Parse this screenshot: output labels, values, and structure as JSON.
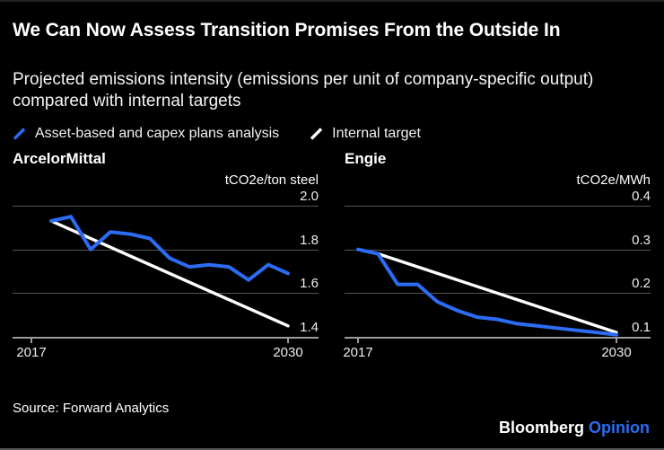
{
  "header": {
    "title": "We Can Now Assess Transition Promises From the Outside In",
    "subtitle": "Projected emissions intensity (emissions per unit of company-specific output) compared with internal targets"
  },
  "legend": {
    "items": [
      {
        "label": "Asset-based and capex plans analysis",
        "color": "#2b6cf2"
      },
      {
        "label": "Internal target",
        "color": "#ffffff"
      }
    ]
  },
  "chart_data": [
    {
      "type": "line",
      "title": "ArcelorMittal",
      "unit": "tCO2e/ton steel",
      "xlim": [
        2017,
        2030
      ],
      "x_ticks": [
        2017,
        2030
      ],
      "ylim": [
        1.4,
        2.0
      ],
      "y_ticks": [
        2.0,
        1.8,
        1.6,
        1.4
      ],
      "grid": "horizontal",
      "legend_position": "top-shared",
      "series": [
        {
          "name": "Asset-based and capex plans analysis",
          "color": "#2b6cf2",
          "x": [
            2018,
            2019,
            2020,
            2021,
            2022,
            2023,
            2024,
            2025,
            2026,
            2027,
            2028,
            2029,
            2030
          ],
          "y": [
            1.93,
            1.95,
            1.8,
            1.88,
            1.87,
            1.85,
            1.76,
            1.72,
            1.73,
            1.72,
            1.66,
            1.73,
            1.69
          ]
        },
        {
          "name": "Internal target",
          "color": "#ffffff",
          "x": [
            2018,
            2030
          ],
          "y": [
            1.93,
            1.45
          ]
        }
      ]
    },
    {
      "type": "line",
      "title": "Engie",
      "unit": "tCO2e/MWh",
      "xlim": [
        2017,
        2030
      ],
      "x_ticks": [
        2017,
        2030
      ],
      "ylim": [
        0.1,
        0.4
      ],
      "y_ticks": [
        0.4,
        0.3,
        0.2,
        0.1
      ],
      "grid": "horizontal",
      "legend_position": "top-shared",
      "series": [
        {
          "name": "Asset-based and capex plans analysis",
          "color": "#2b6cf2",
          "x": [
            2017,
            2018,
            2019,
            2020,
            2021,
            2022,
            2023,
            2024,
            2025,
            2026,
            2027,
            2028,
            2029,
            2030
          ],
          "y": [
            0.3,
            0.29,
            0.22,
            0.22,
            0.18,
            0.16,
            0.145,
            0.14,
            0.13,
            0.125,
            0.12,
            0.115,
            0.11,
            0.105
          ]
        },
        {
          "name": "Internal target",
          "color": "#ffffff",
          "x": [
            2018,
            2030
          ],
          "y": [
            0.29,
            0.11
          ]
        }
      ]
    }
  ],
  "footer": {
    "source": "Source: Forward Analytics",
    "brand": "Bloomberg",
    "brand_suffix": "Opinion"
  },
  "colors": {
    "background": "#000000",
    "accent_blue": "#2b6cf2",
    "line_white": "#ffffff",
    "gridline": "#545454",
    "axis": "#9a9a9a",
    "text_primary": "#ffffff",
    "text_secondary": "#ededed"
  }
}
